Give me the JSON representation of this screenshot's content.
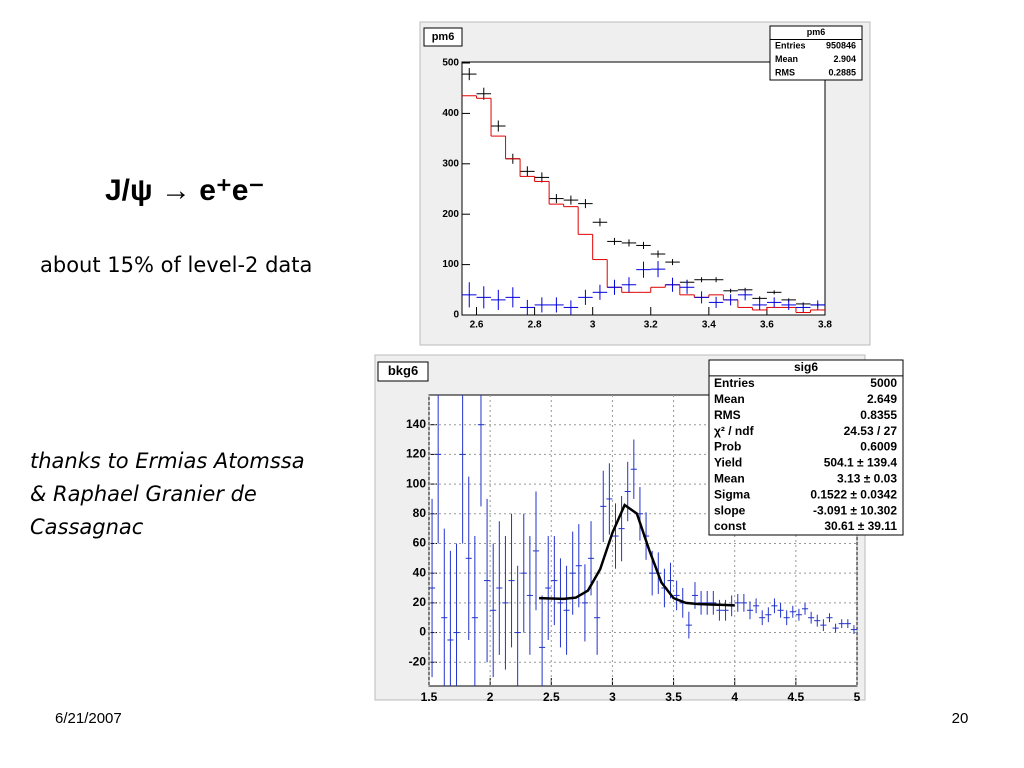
{
  "slide": {
    "title": "J/ψ → e⁺e⁻",
    "subtitle": "about 15% of level-2 data",
    "credit": [
      "thanks to Ermias Atomssa",
      "& Raphael Granier de",
      "Cassagnac"
    ],
    "date": "6/21/2007",
    "page": "20"
  },
  "chart_data": [
    {
      "type": "histogram",
      "title": "pm6",
      "grid": false,
      "bins": [
        2.55,
        2.6,
        2.65,
        2.7,
        2.75,
        2.8,
        2.85,
        2.9,
        2.95,
        3.0,
        3.05,
        3.1,
        3.15,
        3.2,
        3.25,
        3.3,
        3.35,
        3.4,
        3.45,
        3.5,
        3.55,
        3.6,
        3.65,
        3.7,
        3.75,
        3.8
      ],
      "xlim": [
        2.55,
        3.8
      ],
      "ylim": [
        0,
        502
      ],
      "xticks": [
        2.6,
        2.8,
        3,
        3.2,
        3.4,
        3.6,
        3.8
      ],
      "yticks": [
        0,
        100,
        200,
        300,
        400,
        500
      ],
      "series": [
        {
          "style": "points",
          "color": "#000000",
          "values": [
            478,
            439,
            375,
            310,
            285,
            273,
            231,
            228,
            221,
            184,
            146,
            143,
            138,
            121,
            105,
            65,
            70,
            70,
            48,
            50,
            33,
            45,
            30,
            22,
            20
          ],
          "errors": [
            12,
            12,
            11,
            10,
            10,
            10,
            9,
            9,
            9,
            8,
            7,
            7,
            7,
            7,
            6,
            5,
            5,
            5,
            4,
            4,
            4,
            4,
            3,
            3,
            3
          ]
        },
        {
          "style": "step",
          "color": "#e00000",
          "values": [
            435,
            430,
            355,
            310,
            275,
            265,
            220,
            215,
            160,
            110,
            55,
            45,
            45,
            55,
            60,
            40,
            35,
            40,
            30,
            15,
            10,
            15,
            15,
            5,
            10
          ]
        },
        {
          "style": "points",
          "color": "#0000dd",
          "values": [
            40,
            35,
            30,
            35,
            15,
            20,
            20,
            15,
            35,
            45,
            55,
            60,
            90,
            91,
            60,
            55,
            35,
            25,
            30,
            40,
            20,
            25,
            20,
            15,
            20
          ],
          "errors": [
            25,
            22,
            20,
            20,
            15,
            15,
            15,
            14,
            15,
            15,
            15,
            15,
            16,
            16,
            14,
            13,
            12,
            11,
            11,
            11,
            10,
            10,
            10,
            9,
            9
          ]
        }
      ],
      "stats": {
        "title": "pm6",
        "rows": [
          [
            "Entries",
            "950846"
          ],
          [
            "Mean",
            "2.904"
          ],
          [
            "RMS",
            "0.2885"
          ]
        ]
      }
    },
    {
      "type": "histogram",
      "title": "bkg6",
      "grid": true,
      "bins": [
        1.5,
        1.55,
        1.6,
        1.65,
        1.7,
        1.75,
        1.8,
        1.85,
        1.9,
        1.95,
        2.0,
        2.05,
        2.1,
        2.15,
        2.2,
        2.25,
        2.3,
        2.35,
        2.4,
        2.45,
        2.5,
        2.55,
        2.6,
        2.65,
        2.7,
        2.75,
        2.8,
        2.85,
        2.9,
        2.95,
        3.0,
        3.05,
        3.1,
        3.15,
        3.2,
        3.25,
        3.3,
        3.35,
        3.4,
        3.45,
        3.5,
        3.55,
        3.6,
        3.65,
        3.7,
        3.75,
        3.8,
        3.85,
        3.9,
        3.95,
        4.0,
        4.05,
        4.1,
        4.15,
        4.2,
        4.25,
        4.3,
        4.35,
        4.4,
        4.45,
        4.5,
        4.55,
        4.6,
        4.65,
        4.7,
        4.75,
        4.8,
        4.85,
        4.9,
        4.95,
        5.0
      ],
      "xlim": [
        1.5,
        5
      ],
      "ylim": [
        -36,
        160
      ],
      "xticks": [
        1.5,
        2,
        2.5,
        3,
        3.5,
        4,
        4.5,
        5
      ],
      "yticks": [
        -20,
        0,
        20,
        40,
        60,
        80,
        100,
        120,
        140
      ],
      "series": [
        {
          "style": "points",
          "color": "#2233cc",
          "values": [
            30,
            120,
            10,
            -5,
            0,
            120,
            50,
            10,
            140,
            35,
            15,
            30,
            20,
            35,
            0,
            40,
            25,
            55,
            -10,
            30,
            35,
            20,
            15,
            40,
            45,
            20,
            50,
            10,
            85,
            90,
            65,
            70,
            95,
            110,
            80,
            65,
            40,
            40,
            30,
            35,
            25,
            20,
            5,
            25,
            20,
            20,
            20,
            15,
            15,
            18,
            20,
            20,
            15,
            18,
            10,
            12,
            18,
            15,
            10,
            14,
            12,
            16,
            10,
            8,
            5,
            10,
            3,
            6,
            6,
            2
          ],
          "errors": [
            60,
            60,
            60,
            60,
            60,
            60,
            55,
            55,
            55,
            55,
            45,
            45,
            45,
            45,
            45,
            40,
            40,
            40,
            35,
            35,
            30,
            30,
            30,
            28,
            28,
            26,
            25,
            25,
            24,
            24,
            22,
            22,
            20,
            20,
            18,
            16,
            15,
            14,
            13,
            12,
            10,
            10,
            9,
            9,
            8,
            8,
            8,
            7,
            7,
            7,
            6,
            6,
            6,
            5,
            5,
            5,
            5,
            5,
            5,
            4,
            4,
            4,
            4,
            4,
            4,
            3,
            3,
            3,
            3,
            3
          ]
        },
        {
          "style": "line",
          "color": "#000000",
          "x": [
            2.4,
            2.5,
            2.6,
            2.7,
            2.8,
            2.9,
            3.0,
            3.1,
            3.2,
            3.3,
            3.4,
            3.5,
            3.6,
            3.7,
            3.8,
            3.9,
            4.0
          ],
          "values": [
            23.2,
            22.9,
            22.7,
            23.5,
            28.3,
            42.7,
            67.2,
            85.9,
            80.1,
            55.8,
            33.8,
            23.2,
            20.0,
            19.2,
            18.9,
            18.6,
            18.3
          ]
        }
      ],
      "stats": {
        "title": "sig6",
        "rows": [
          [
            "Entries",
            "5000"
          ],
          [
            "Mean",
            "2.649"
          ],
          [
            "RMS",
            "0.8355"
          ],
          [
            "χ² / ndf",
            "24.53 / 27"
          ],
          [
            "Prob",
            "0.6009"
          ],
          [
            "Yield",
            "504.1 ± 139.4"
          ],
          [
            "Mean",
            "3.13 ± 0.03"
          ],
          [
            "Sigma",
            "0.1522 ± 0.0342"
          ],
          [
            "slope",
            "-3.091 ± 10.302"
          ],
          [
            "const",
            "30.61 ± 39.11"
          ]
        ]
      }
    }
  ]
}
